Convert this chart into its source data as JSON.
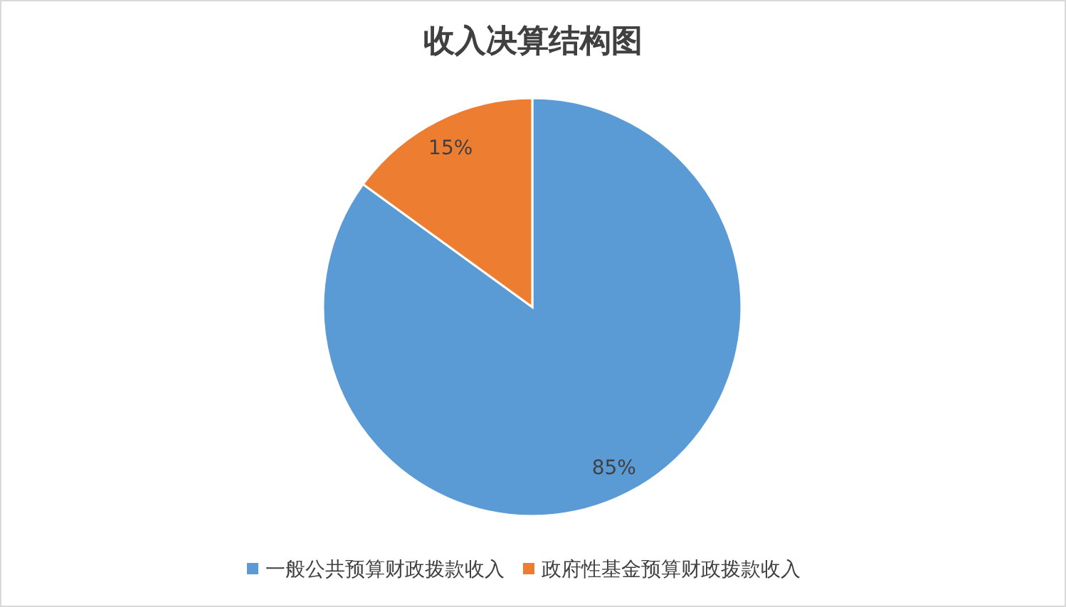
{
  "chart_data": {
    "type": "pie",
    "title": "收入决算结构图",
    "categories": [
      "一般公共预算财政拨款收入",
      "政府性基金预算财政拨款收入"
    ],
    "values": [
      85,
      15
    ],
    "colors": [
      "#5b9bd5",
      "#ed7d31"
    ],
    "value_labels": [
      "85%",
      "15%"
    ],
    "legend": "bottom"
  }
}
